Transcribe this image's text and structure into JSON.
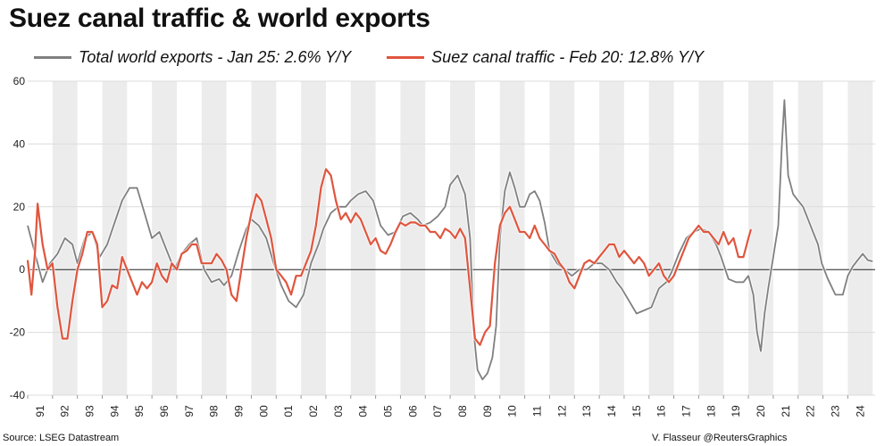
{
  "title": "Suez canal traffic & world exports",
  "source": "Source: LSEG Datastream",
  "credit": "V. Flasseur @ReutersGraphics",
  "chart_data": {
    "type": "line",
    "title": "Suez canal traffic & world exports",
    "xlabel": "",
    "ylabel": "",
    "xlim": [
      1991.0,
      2025.1
    ],
    "ylim": [
      -40,
      60
    ],
    "y_ticks": [
      60,
      40,
      20,
      0,
      -20,
      -40
    ],
    "x_tick_labels": [
      "91",
      "92",
      "93",
      "94",
      "95",
      "96",
      "97",
      "98",
      "99",
      "00",
      "01",
      "02",
      "03",
      "04",
      "05",
      "06",
      "07",
      "08",
      "09",
      "10",
      "11",
      "12",
      "13",
      "14",
      "15",
      "16",
      "17",
      "18",
      "19",
      "20",
      "21",
      "22",
      "23",
      "24"
    ],
    "grid": true,
    "alternating_year_bands": true,
    "legend_position": "top",
    "series": [
      {
        "name": "Total world exports - Jan 25: 2.6% Y/Y",
        "color": "#808080",
        "points": [
          [
            1991.0,
            14
          ],
          [
            1991.3,
            5
          ],
          [
            1991.6,
            -4
          ],
          [
            1991.9,
            2
          ],
          [
            1992.2,
            5
          ],
          [
            1992.5,
            10
          ],
          [
            1992.8,
            8
          ],
          [
            1993.0,
            2
          ],
          [
            1993.3,
            10
          ],
          [
            1993.6,
            12
          ],
          [
            1993.9,
            4
          ],
          [
            1994.2,
            8
          ],
          [
            1994.5,
            15
          ],
          [
            1994.8,
            22
          ],
          [
            1995.1,
            26
          ],
          [
            1995.4,
            26
          ],
          [
            1995.7,
            18
          ],
          [
            1996.0,
            10
          ],
          [
            1996.3,
            12
          ],
          [
            1996.6,
            6
          ],
          [
            1996.9,
            0
          ],
          [
            1997.2,
            5
          ],
          [
            1997.5,
            8
          ],
          [
            1997.8,
            10
          ],
          [
            1998.1,
            0
          ],
          [
            1998.4,
            -4
          ],
          [
            1998.7,
            -3
          ],
          [
            1998.9,
            -5
          ],
          [
            1999.2,
            -2
          ],
          [
            1999.5,
            6
          ],
          [
            1999.8,
            13
          ],
          [
            2000.0,
            16
          ],
          [
            2000.3,
            14
          ],
          [
            2000.6,
            10
          ],
          [
            2000.9,
            2
          ],
          [
            2001.2,
            -5
          ],
          [
            2001.5,
            -10
          ],
          [
            2001.8,
            -12
          ],
          [
            2002.1,
            -8
          ],
          [
            2002.4,
            2
          ],
          [
            2002.7,
            8
          ],
          [
            2002.9,
            13
          ],
          [
            2003.2,
            18
          ],
          [
            2003.5,
            20
          ],
          [
            2003.8,
            20
          ],
          [
            2004.0,
            22
          ],
          [
            2004.3,
            24
          ],
          [
            2004.6,
            25
          ],
          [
            2004.9,
            22
          ],
          [
            2005.2,
            14
          ],
          [
            2005.5,
            11
          ],
          [
            2005.8,
            12
          ],
          [
            2006.1,
            17
          ],
          [
            2006.4,
            18
          ],
          [
            2006.7,
            16
          ],
          [
            2006.9,
            14
          ],
          [
            2007.2,
            15
          ],
          [
            2007.5,
            17
          ],
          [
            2007.8,
            20
          ],
          [
            2008.0,
            27
          ],
          [
            2008.3,
            30
          ],
          [
            2008.6,
            24
          ],
          [
            2008.8,
            10
          ],
          [
            2008.95,
            -20
          ],
          [
            2009.1,
            -32
          ],
          [
            2009.3,
            -35
          ],
          [
            2009.5,
            -33
          ],
          [
            2009.7,
            -28
          ],
          [
            2009.85,
            -18
          ],
          [
            2010.0,
            10
          ],
          [
            2010.2,
            25
          ],
          [
            2010.4,
            31
          ],
          [
            2010.6,
            26
          ],
          [
            2010.8,
            20
          ],
          [
            2011.0,
            20
          ],
          [
            2011.2,
            24
          ],
          [
            2011.4,
            25
          ],
          [
            2011.6,
            22
          ],
          [
            2011.8,
            15
          ],
          [
            2012.0,
            6
          ],
          [
            2012.3,
            2
          ],
          [
            2012.6,
            0
          ],
          [
            2012.9,
            -2
          ],
          [
            2013.2,
            0
          ],
          [
            2013.5,
            0
          ],
          [
            2013.8,
            2
          ],
          [
            2014.1,
            2
          ],
          [
            2014.4,
            0
          ],
          [
            2014.7,
            -4
          ],
          [
            2014.9,
            -6
          ],
          [
            2015.2,
            -10
          ],
          [
            2015.5,
            -14
          ],
          [
            2015.8,
            -13
          ],
          [
            2016.1,
            -12
          ],
          [
            2016.4,
            -6
          ],
          [
            2016.7,
            -4
          ],
          [
            2016.9,
            -1
          ],
          [
            2017.2,
            5
          ],
          [
            2017.5,
            10
          ],
          [
            2017.8,
            12
          ],
          [
            2018.1,
            13
          ],
          [
            2018.4,
            12
          ],
          [
            2018.7,
            8
          ],
          [
            2018.9,
            4
          ],
          [
            2019.2,
            -3
          ],
          [
            2019.5,
            -4
          ],
          [
            2019.8,
            -4
          ],
          [
            2020.0,
            -2
          ],
          [
            2020.2,
            -8
          ],
          [
            2020.35,
            -20
          ],
          [
            2020.5,
            -26
          ],
          [
            2020.65,
            -14
          ],
          [
            2020.8,
            -6
          ],
          [
            2021.0,
            4
          ],
          [
            2021.2,
            14
          ],
          [
            2021.35,
            40
          ],
          [
            2021.45,
            54
          ],
          [
            2021.6,
            30
          ],
          [
            2021.8,
            24
          ],
          [
            2022.0,
            22
          ],
          [
            2022.2,
            20
          ],
          [
            2022.4,
            16
          ],
          [
            2022.6,
            12
          ],
          [
            2022.8,
            8
          ],
          [
            2022.95,
            2
          ],
          [
            2023.2,
            -3
          ],
          [
            2023.5,
            -8
          ],
          [
            2023.8,
            -8
          ],
          [
            2024.0,
            -2
          ],
          [
            2024.2,
            1
          ],
          [
            2024.4,
            3
          ],
          [
            2024.6,
            5
          ],
          [
            2024.8,
            3
          ],
          [
            2025.0,
            2.6
          ]
        ]
      },
      {
        "name": "Suez canal traffic - Feb 20: 12.8% Y/Y",
        "color": "#e0553e",
        "points": [
          [
            1991.0,
            3
          ],
          [
            1991.15,
            -8
          ],
          [
            1991.3,
            6
          ],
          [
            1991.4,
            21
          ],
          [
            1991.6,
            8
          ],
          [
            1991.8,
            0
          ],
          [
            1992.0,
            2
          ],
          [
            1992.2,
            -12
          ],
          [
            1992.4,
            -22
          ],
          [
            1992.6,
            -22
          ],
          [
            1992.8,
            -10
          ],
          [
            1993.0,
            0
          ],
          [
            1993.2,
            5
          ],
          [
            1993.4,
            12
          ],
          [
            1993.6,
            12
          ],
          [
            1993.8,
            8
          ],
          [
            1994.0,
            -12
          ],
          [
            1994.2,
            -10
          ],
          [
            1994.4,
            -5
          ],
          [
            1994.6,
            -6
          ],
          [
            1994.8,
            4
          ],
          [
            1995.0,
            0
          ],
          [
            1995.2,
            -4
          ],
          [
            1995.4,
            -8
          ],
          [
            1995.6,
            -4
          ],
          [
            1995.8,
            -6
          ],
          [
            1996.0,
            -4
          ],
          [
            1996.2,
            2
          ],
          [
            1996.4,
            -2
          ],
          [
            1996.6,
            -4
          ],
          [
            1996.8,
            2
          ],
          [
            1997.0,
            0
          ],
          [
            1997.2,
            5
          ],
          [
            1997.4,
            6
          ],
          [
            1997.6,
            8
          ],
          [
            1997.8,
            8
          ],
          [
            1998.0,
            2
          ],
          [
            1998.2,
            2
          ],
          [
            1998.4,
            2
          ],
          [
            1998.6,
            5
          ],
          [
            1998.8,
            3
          ],
          [
            1999.0,
            0
          ],
          [
            1999.2,
            -8
          ],
          [
            1999.4,
            -10
          ],
          [
            1999.6,
            0
          ],
          [
            1999.8,
            10
          ],
          [
            2000.0,
            18
          ],
          [
            2000.2,
            24
          ],
          [
            2000.4,
            22
          ],
          [
            2000.6,
            16
          ],
          [
            2000.8,
            10
          ],
          [
            2001.0,
            0
          ],
          [
            2001.2,
            -2
          ],
          [
            2001.4,
            -4
          ],
          [
            2001.6,
            -8
          ],
          [
            2001.8,
            -2
          ],
          [
            2002.0,
            -2
          ],
          [
            2002.2,
            2
          ],
          [
            2002.4,
            6
          ],
          [
            2002.6,
            14
          ],
          [
            2002.8,
            26
          ],
          [
            2003.0,
            32
          ],
          [
            2003.2,
            30
          ],
          [
            2003.4,
            22
          ],
          [
            2003.6,
            16
          ],
          [
            2003.8,
            18
          ],
          [
            2004.0,
            15
          ],
          [
            2004.2,
            18
          ],
          [
            2004.4,
            16
          ],
          [
            2004.6,
            12
          ],
          [
            2004.8,
            8
          ],
          [
            2005.0,
            10
          ],
          [
            2005.2,
            6
          ],
          [
            2005.4,
            5
          ],
          [
            2005.6,
            8
          ],
          [
            2005.8,
            12
          ],
          [
            2006.0,
            15
          ],
          [
            2006.2,
            14
          ],
          [
            2006.4,
            15
          ],
          [
            2006.6,
            15
          ],
          [
            2006.8,
            14
          ],
          [
            2007.0,
            14
          ],
          [
            2007.2,
            12
          ],
          [
            2007.4,
            12
          ],
          [
            2007.6,
            10
          ],
          [
            2007.8,
            13
          ],
          [
            2008.0,
            12
          ],
          [
            2008.2,
            10
          ],
          [
            2008.4,
            13
          ],
          [
            2008.6,
            10
          ],
          [
            2008.8,
            -6
          ],
          [
            2009.0,
            -22
          ],
          [
            2009.2,
            -24
          ],
          [
            2009.4,
            -20
          ],
          [
            2009.6,
            -18
          ],
          [
            2009.8,
            2
          ],
          [
            2010.0,
            14
          ],
          [
            2010.2,
            18
          ],
          [
            2010.4,
            20
          ],
          [
            2010.6,
            16
          ],
          [
            2010.8,
            12
          ],
          [
            2011.0,
            12
          ],
          [
            2011.2,
            10
          ],
          [
            2011.4,
            14
          ],
          [
            2011.6,
            10
          ],
          [
            2011.8,
            8
          ],
          [
            2012.0,
            6
          ],
          [
            2012.2,
            5
          ],
          [
            2012.4,
            2
          ],
          [
            2012.6,
            0
          ],
          [
            2012.8,
            -4
          ],
          [
            2013.0,
            -6
          ],
          [
            2013.2,
            -2
          ],
          [
            2013.4,
            2
          ],
          [
            2013.6,
            3
          ],
          [
            2013.8,
            2
          ],
          [
            2014.0,
            4
          ],
          [
            2014.2,
            6
          ],
          [
            2014.4,
            8
          ],
          [
            2014.6,
            8
          ],
          [
            2014.8,
            4
          ],
          [
            2015.0,
            6
          ],
          [
            2015.2,
            4
          ],
          [
            2015.4,
            2
          ],
          [
            2015.6,
            4
          ],
          [
            2015.8,
            2
          ],
          [
            2016.0,
            -2
          ],
          [
            2016.2,
            0
          ],
          [
            2016.4,
            2
          ],
          [
            2016.6,
            -2
          ],
          [
            2016.8,
            -4
          ],
          [
            2017.0,
            -2
          ],
          [
            2017.2,
            2
          ],
          [
            2017.4,
            6
          ],
          [
            2017.6,
            10
          ],
          [
            2017.8,
            12
          ],
          [
            2018.0,
            14
          ],
          [
            2018.2,
            12
          ],
          [
            2018.4,
            12
          ],
          [
            2018.6,
            10
          ],
          [
            2018.8,
            8
          ],
          [
            2019.0,
            12
          ],
          [
            2019.2,
            8
          ],
          [
            2019.4,
            10
          ],
          [
            2019.6,
            4
          ],
          [
            2019.8,
            4
          ],
          [
            2020.0,
            10
          ],
          [
            2020.1,
            12.8
          ]
        ]
      }
    ]
  }
}
